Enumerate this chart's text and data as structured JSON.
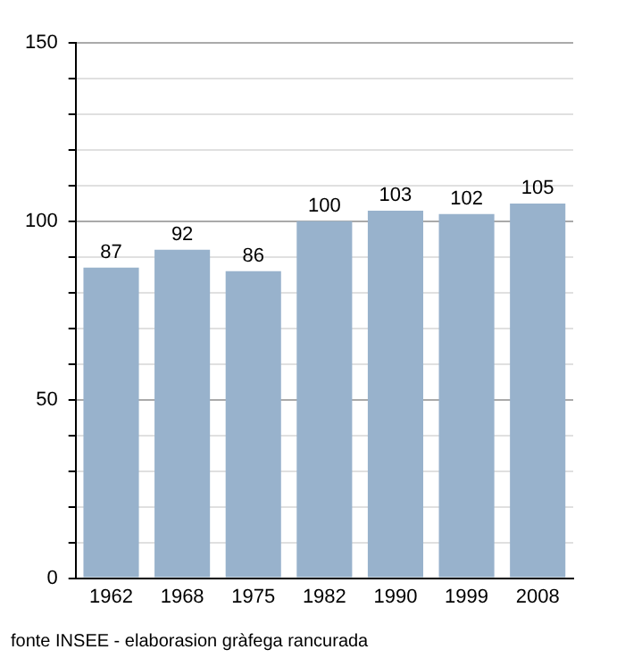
{
  "chart_data": {
    "type": "bar",
    "categories": [
      "1962",
      "1968",
      "1975",
      "1982",
      "1990",
      "1999",
      "2008"
    ],
    "values": [
      87,
      92,
      86,
      100,
      103,
      102,
      105
    ],
    "color": "#98b2cc",
    "data_labels": true,
    "grid": "y",
    "legend": false,
    "ylim": [
      0,
      150
    ],
    "yticks": [
      0,
      {
        "value": 10,
        "label": null
      },
      {
        "value": 20,
        "label": null
      },
      {
        "value": 30,
        "label": null
      },
      {
        "value": 40,
        "label": null
      },
      50,
      {
        "value": 60,
        "label": null
      },
      {
        "value": 70,
        "label": null
      },
      {
        "value": 80,
        "label": null
      },
      {
        "value": 90,
        "label": null
      },
      100,
      {
        "value": 110,
        "label": null
      },
      {
        "value": 120,
        "label": null
      },
      {
        "value": 130,
        "label": null
      },
      {
        "value": 140,
        "label": null
      },
      150
    ],
    "annotations": [
      "fonte INSEE - elaborasion gràfega rancurada"
    ]
  }
}
